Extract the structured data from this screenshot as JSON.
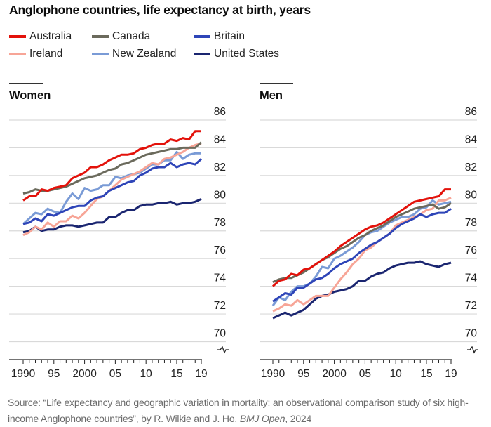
{
  "chart_data": [
    {
      "type": "line",
      "title": "Women",
      "xlabel": "",
      "ylabel": "Life expectancy at birth, years",
      "x": [
        1990,
        1991,
        1992,
        1993,
        1994,
        1995,
        1996,
        1997,
        1998,
        1999,
        2000,
        2001,
        2002,
        2003,
        2004,
        2005,
        2006,
        2007,
        2008,
        2009,
        2010,
        2011,
        2012,
        2013,
        2014,
        2015,
        2016,
        2017,
        2018,
        2019
      ],
      "x_tick_labels": [
        "1990",
        "95",
        "2000",
        "05",
        "10",
        "15",
        "19"
      ],
      "x_tick_values": [
        1990,
        1995,
        2000,
        2005,
        2010,
        2015,
        2019
      ],
      "ylim": [
        69,
        86
      ],
      "y_ticks": [
        86,
        84,
        82,
        80,
        78,
        76,
        74,
        72,
        70
      ],
      "grid": true,
      "axis_break": true,
      "series": [
        {
          "name": "Australia",
          "values": [
            80.2,
            80.5,
            80.5,
            81.0,
            80.9,
            81.1,
            81.2,
            81.3,
            81.8,
            82.0,
            82.2,
            82.6,
            82.6,
            82.8,
            83.1,
            83.3,
            83.5,
            83.5,
            83.6,
            83.9,
            84.0,
            84.2,
            84.3,
            84.3,
            84.6,
            84.5,
            84.7,
            84.6,
            85.2,
            85.2
          ]
        },
        {
          "name": "Canada",
          "values": [
            80.7,
            80.8,
            81.0,
            80.9,
            80.9,
            81.0,
            81.1,
            81.2,
            81.4,
            81.6,
            81.8,
            81.9,
            82.0,
            82.2,
            82.4,
            82.5,
            82.8,
            82.9,
            83.1,
            83.3,
            83.5,
            83.6,
            83.7,
            83.8,
            83.9,
            83.9,
            84.0,
            84.0,
            84.0,
            84.4
          ]
        },
        {
          "name": "Britain",
          "values": [
            78.5,
            78.6,
            78.9,
            78.7,
            79.2,
            79.1,
            79.3,
            79.5,
            79.7,
            79.8,
            79.8,
            80.2,
            80.4,
            80.5,
            80.9,
            81.1,
            81.3,
            81.5,
            81.6,
            82.0,
            82.2,
            82.5,
            82.6,
            82.6,
            82.9,
            82.6,
            82.8,
            82.9,
            82.8,
            83.2
          ]
        },
        {
          "name": "Ireland",
          "values": [
            77.7,
            77.9,
            78.3,
            78.1,
            78.6,
            78.3,
            78.7,
            78.7,
            79.1,
            78.9,
            79.3,
            79.8,
            80.3,
            80.5,
            80.9,
            81.3,
            81.7,
            81.9,
            82.1,
            82.3,
            82.6,
            82.9,
            82.8,
            83.2,
            83.3,
            83.5,
            83.7,
            84.0,
            84.2,
            84.3
          ]
        },
        {
          "name": "New Zealand",
          "values": [
            78.5,
            78.9,
            79.3,
            79.2,
            79.6,
            79.4,
            79.3,
            80.1,
            80.7,
            80.3,
            81.1,
            80.9,
            81.0,
            81.3,
            81.3,
            81.9,
            81.8,
            82.0,
            82.1,
            82.2,
            82.5,
            82.8,
            82.8,
            83.1,
            83.1,
            83.7,
            83.2,
            83.5,
            83.6,
            83.6
          ]
        },
        {
          "name": "United States",
          "values": [
            77.9,
            78.0,
            78.3,
            78.0,
            78.1,
            78.1,
            78.3,
            78.4,
            78.4,
            78.3,
            78.4,
            78.5,
            78.6,
            78.6,
            79.0,
            79.0,
            79.3,
            79.5,
            79.5,
            79.8,
            79.9,
            79.9,
            80.0,
            80.0,
            80.1,
            79.9,
            80.0,
            80.0,
            80.1,
            80.3
          ]
        }
      ]
    },
    {
      "type": "line",
      "title": "Men",
      "xlabel": "",
      "ylabel": "Life expectancy at birth, years",
      "x": [
        1990,
        1991,
        1992,
        1993,
        1994,
        1995,
        1996,
        1997,
        1998,
        1999,
        2000,
        2001,
        2002,
        2003,
        2004,
        2005,
        2006,
        2007,
        2008,
        2009,
        2010,
        2011,
        2012,
        2013,
        2014,
        2015,
        2016,
        2017,
        2018,
        2019
      ],
      "x_tick_labels": [
        "1990",
        "95",
        "2000",
        "05",
        "10",
        "15",
        "19"
      ],
      "x_tick_values": [
        1990,
        1995,
        2000,
        2005,
        2010,
        2015,
        2019
      ],
      "ylim": [
        69,
        86
      ],
      "y_ticks": [
        86,
        84,
        82,
        80,
        78,
        76,
        74,
        72,
        70
      ],
      "grid": true,
      "axis_break": true,
      "series": [
        {
          "name": "Australia",
          "values": [
            74.0,
            74.4,
            74.5,
            74.9,
            74.8,
            75.2,
            75.3,
            75.6,
            75.9,
            76.2,
            76.5,
            76.9,
            77.2,
            77.5,
            77.8,
            78.1,
            78.3,
            78.4,
            78.6,
            78.9,
            79.2,
            79.5,
            79.8,
            80.1,
            80.2,
            80.3,
            80.4,
            80.5,
            81.0,
            81.0
          ]
        },
        {
          "name": "Canada",
          "values": [
            74.3,
            74.5,
            74.6,
            74.6,
            74.8,
            75.0,
            75.3,
            75.6,
            75.9,
            76.1,
            76.4,
            76.7,
            76.9,
            77.2,
            77.5,
            77.7,
            78.0,
            78.2,
            78.4,
            78.7,
            79.0,
            79.2,
            79.4,
            79.6,
            79.7,
            79.8,
            79.9,
            79.6,
            79.7,
            80.0
          ]
        },
        {
          "name": "Britain",
          "values": [
            72.9,
            73.2,
            73.5,
            73.4,
            73.9,
            73.9,
            74.2,
            74.5,
            74.6,
            74.9,
            75.3,
            75.6,
            75.8,
            76.0,
            76.4,
            76.7,
            77.0,
            77.2,
            77.5,
            77.8,
            78.2,
            78.5,
            78.7,
            78.9,
            79.2,
            79.0,
            79.2,
            79.3,
            79.3,
            79.6
          ]
        },
        {
          "name": "Ireland",
          "values": [
            72.2,
            72.4,
            72.7,
            72.6,
            73.0,
            72.7,
            73.0,
            73.3,
            73.3,
            73.3,
            73.9,
            74.5,
            75.0,
            75.6,
            76.0,
            76.6,
            76.8,
            77.2,
            77.5,
            77.8,
            78.4,
            78.6,
            78.8,
            79.0,
            79.2,
            79.5,
            79.6,
            80.2,
            80.2,
            80.4
          ]
        },
        {
          "name": "New Zealand",
          "values": [
            72.6,
            73.2,
            73.0,
            73.6,
            74.0,
            74.0,
            74.2,
            74.7,
            75.4,
            75.3,
            76.0,
            76.2,
            76.5,
            76.8,
            77.2,
            77.7,
            77.9,
            78.0,
            78.3,
            78.6,
            78.8,
            79.0,
            79.0,
            79.2,
            79.6,
            79.7,
            80.2,
            79.9,
            80.0,
            80.1
          ]
        },
        {
          "name": "United States",
          "values": [
            71.7,
            71.9,
            72.1,
            71.9,
            72.1,
            72.3,
            72.7,
            73.1,
            73.3,
            73.4,
            73.6,
            73.7,
            73.8,
            74.0,
            74.4,
            74.4,
            74.7,
            74.9,
            75.0,
            75.3,
            75.5,
            75.6,
            75.7,
            75.7,
            75.8,
            75.6,
            75.5,
            75.4,
            75.6,
            75.7
          ]
        }
      ]
    }
  ],
  "header": {
    "title": "Anglophone countries, life expectancy at birth, years"
  },
  "legend": [
    {
      "label": "Australia",
      "color": "#e3120b"
    },
    {
      "label": "Canada",
      "color": "#6b6a5c"
    },
    {
      "label": "Britain",
      "color": "#2e45b8"
    },
    {
      "label": "Ireland",
      "color": "#f7a597"
    },
    {
      "label": "New Zealand",
      "color": "#7a9bd6"
    },
    {
      "label": "United States",
      "color": "#1a2570"
    }
  ],
  "panels": {
    "women": {
      "title": "Women"
    },
    "men": {
      "title": "Men"
    }
  },
  "source": {
    "prefix": "Source: “Life expectancy and geographic variation in mortality: an observational comparison study of six high-income Anglophone countries”, by R. Wilkie and J. Ho, ",
    "journal": "BMJ Open",
    "suffix": ", 2024"
  }
}
